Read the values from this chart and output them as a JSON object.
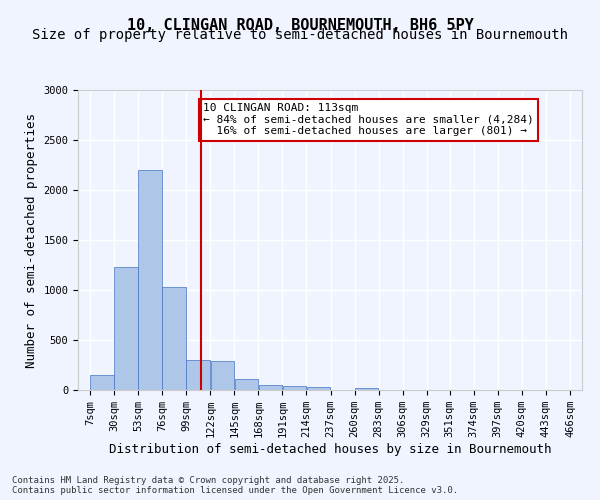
{
  "title_line1": "10, CLINGAN ROAD, BOURNEMOUTH, BH6 5PY",
  "title_line2": "Size of property relative to semi-detached houses in Bournemouth",
  "xlabel": "Distribution of semi-detached houses by size in Bournemouth",
  "ylabel": "Number of semi-detached properties",
  "footer": "Contains HM Land Registry data © Crown copyright and database right 2025.\nContains public sector information licensed under the Open Government Licence v3.0.",
  "bin_labels": [
    "7sqm",
    "30sqm",
    "53sqm",
    "76sqm",
    "99sqm",
    "122sqm",
    "145sqm",
    "168sqm",
    "191sqm",
    "214sqm",
    "237sqm",
    "260sqm",
    "283sqm",
    "306sqm",
    "329sqm",
    "351sqm",
    "374sqm",
    "397sqm",
    "420sqm",
    "443sqm",
    "466sqm"
  ],
  "bar_values": [
    150,
    1230,
    2200,
    1030,
    300,
    290,
    110,
    55,
    45,
    30,
    0,
    20,
    0,
    0,
    0,
    0,
    0,
    0,
    0,
    0
  ],
  "bin_edges": [
    7,
    30,
    53,
    76,
    99,
    122,
    145,
    168,
    191,
    214,
    237,
    260,
    283,
    306,
    329,
    351,
    374,
    397,
    420,
    443,
    466
  ],
  "property_size": 113,
  "property_label": "10 CLINGAN ROAD: 113sqm",
  "pct_smaller": 84,
  "count_smaller": 4284,
  "pct_larger": 16,
  "count_larger": 801,
  "bar_color": "#aec6e8",
  "bar_edge_color": "#4472c4",
  "vline_color": "#cc0000",
  "annotation_box_color": "#cc0000",
  "ylim": [
    0,
    3000
  ],
  "yticks": [
    0,
    500,
    1000,
    1500,
    2000,
    2500,
    3000
  ],
  "background_color": "#f0f4ff",
  "grid_color": "#ffffff",
  "title_fontsize": 11,
  "subtitle_fontsize": 10,
  "axis_label_fontsize": 9,
  "tick_fontsize": 7.5,
  "annotation_fontsize": 8
}
